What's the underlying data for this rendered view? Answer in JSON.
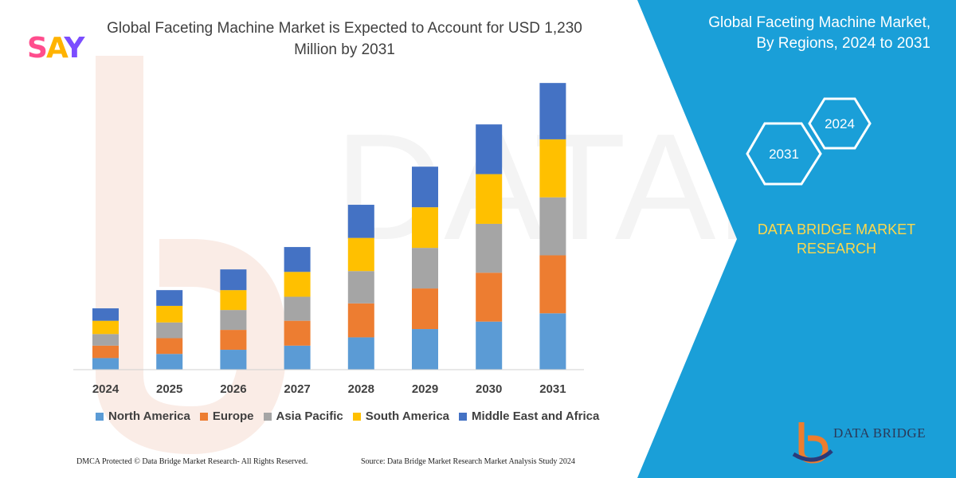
{
  "header": {
    "title_line1": "Global Faceting Machine Market is Expected to Account for USD 1,230",
    "title_line2": "Million by 2031",
    "logo": {
      "s": "S",
      "a": "A",
      "y": "Y"
    }
  },
  "side_panel": {
    "title_line1": "Global Faceting Machine Market,",
    "title_line2": "By Regions, 2024 to 2031",
    "hex_back": "2024",
    "hex_front": "2031",
    "brand_line1": "DATA BRIDGE MARKET",
    "brand_line2": "RESEARCH",
    "logo_text": "DATA BRIDGE",
    "colors": {
      "panel": "#1a9fd8",
      "hex_stroke": "#ffffff",
      "brand_text": "#ffd84a"
    }
  },
  "footer": {
    "left": "DMCA Protected © Data Bridge Market Research-  All Rights Reserved.",
    "right": "Source: Data Bridge Market Research  Market Analysis Study 2024"
  },
  "chart_data": {
    "type": "bar",
    "stacked": true,
    "categories": [
      "2024",
      "2025",
      "2026",
      "2027",
      "2028",
      "2029",
      "2030",
      "2031"
    ],
    "series": [
      {
        "name": "North America",
        "color": "#5b9bd5",
        "values": [
          14,
          19,
          24,
          29,
          39,
          49,
          58,
          68
        ]
      },
      {
        "name": "Europe",
        "color": "#ed7d31",
        "values": [
          15,
          19,
          24,
          30,
          41,
          49,
          59,
          70
        ]
      },
      {
        "name": "Asia Pacific",
        "color": "#a5a5a5",
        "values": [
          14,
          19,
          24,
          29,
          39,
          49,
          59,
          70
        ]
      },
      {
        "name": "South America",
        "color": "#ffc000",
        "values": [
          16,
          20,
          24,
          30,
          40,
          49,
          60,
          70
        ]
      },
      {
        "name": "Middle East and Africa",
        "color": "#4472c4",
        "values": [
          15,
          19,
          25,
          30,
          40,
          49,
          60,
          68
        ]
      }
    ],
    "ylim": [
      0,
      350
    ],
    "grid": false,
    "legend_position": "bottom",
    "title": "Global Faceting Machine Market is Expected to Account for USD 1,230 Million by 2031"
  }
}
